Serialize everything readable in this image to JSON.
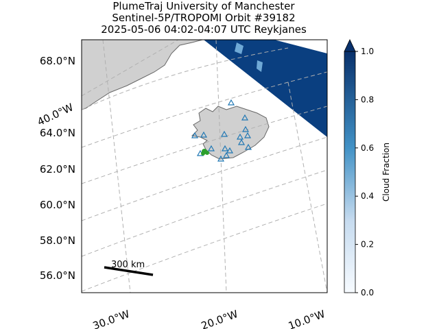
{
  "title": [
    "PlumeTraj    University of Manchester",
    "Sentinel-5P/TROPOMI Orbit #39182",
    "2025-05-06   04:02-04:07 UTC   Reykjanes"
  ],
  "lat_labels": [
    "68.0°N",
    "64.0°N",
    "62.0°N",
    "60.0°N",
    "58.0°N",
    "56.0°N"
  ],
  "lon_labels": [
    "40.0°W",
    "30.0°W",
    "20.0°W",
    "10.0°W"
  ],
  "scale_bar": "300 km",
  "colorbar": {
    "label": "Cloud Fraction",
    "lim": [
      0,
      1
    ],
    "ticks": [
      {
        "value": 0,
        "label": "0.0"
      },
      {
        "value": 0.2,
        "label": "0.2"
      },
      {
        "value": 0.4,
        "label": "0.4"
      },
      {
        "value": 0.6,
        "label": "0.6"
      },
      {
        "value": 0.8,
        "label": "0.8"
      },
      {
        "value": 1,
        "label": "1.0"
      }
    ]
  }
}
